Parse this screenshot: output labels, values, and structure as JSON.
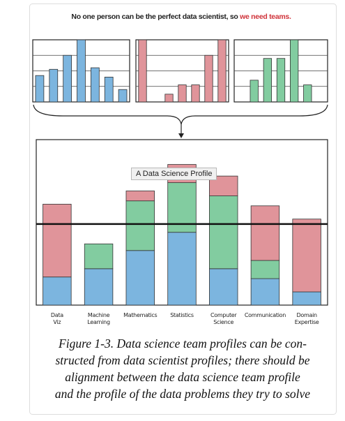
{
  "header": {
    "title_parts": [
      "No one person can be the perfect data scientist, so ",
      "we need teams."
    ]
  },
  "tooltip": "A Data Science Profile",
  "caption": {
    "lines": [
      "Figure 1-3. Data science team profiles can be con-",
      "structed from data scientist profiles; there should be",
      "alignment between the data science team profile",
      "and the profile of the data problems they try to solve"
    ]
  },
  "chart_data": [
    {
      "type": "bar",
      "color": "#7cb5df",
      "values": [
        1.7,
        2.1,
        3,
        4,
        2.2,
        1.6,
        0.8
      ],
      "ylim": [
        0,
        4
      ]
    },
    {
      "type": "bar",
      "color": "#e0949a",
      "values": [
        4,
        0,
        0.5,
        1.1,
        1.1,
        3,
        4
      ],
      "ylim": [
        0,
        4
      ]
    },
    {
      "type": "bar",
      "color": "#82cca0",
      "values": [
        0,
        1.4,
        2.8,
        2.8,
        4,
        1.1,
        0
      ],
      "ylim": [
        0,
        4
      ]
    },
    {
      "type": "stacked_bar",
      "categories": [
        "Data\nViz",
        "Machine\nLearning",
        "Mathematics",
        "Statistics",
        "Computer\nScience",
        "Communication",
        "Domain\nExpertise"
      ],
      "series": [
        {
          "color": "#7cb5df",
          "values": [
            17,
            22,
            33,
            44,
            22,
            16,
            8
          ]
        },
        {
          "color": "#82cca0",
          "values": [
            0,
            15,
            30,
            30,
            44,
            11,
            0
          ]
        },
        {
          "color": "#e0949a",
          "values": [
            44,
            0,
            6,
            11,
            12,
            33,
            44
          ]
        }
      ],
      "ylim": [
        0,
        100
      ],
      "reference_line": 49
    }
  ]
}
